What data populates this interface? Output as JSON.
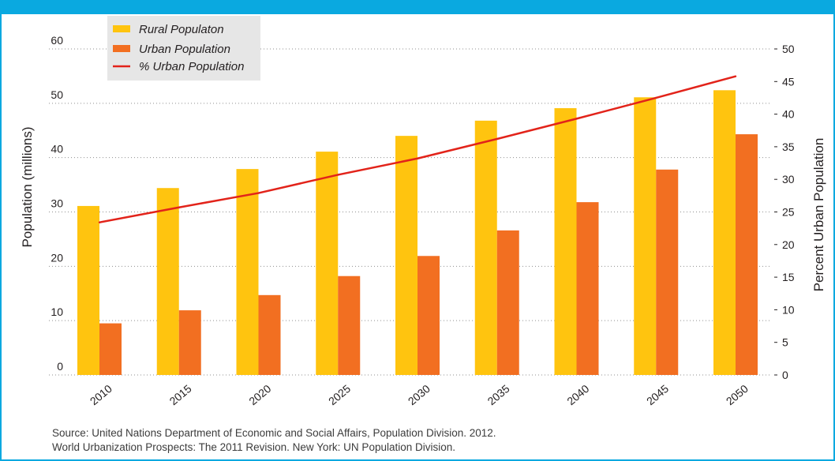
{
  "chart_data": {
    "type": "bar",
    "categories": [
      "2010",
      "2015",
      "2020",
      "2025",
      "2030",
      "2035",
      "2040",
      "2045",
      "2050"
    ],
    "series": [
      {
        "name": "Rural Populaton",
        "type": "bar",
        "axis": "left",
        "color": "#ffc40f",
        "values": [
          31.1,
          34.4,
          37.9,
          41.1,
          44.0,
          46.8,
          49.1,
          51.1,
          52.4
        ]
      },
      {
        "name": "Urban Population",
        "type": "bar",
        "axis": "left",
        "color": "#f26f21",
        "values": [
          9.5,
          11.9,
          14.7,
          18.2,
          21.9,
          26.6,
          31.8,
          37.8,
          44.3
        ]
      },
      {
        "name": "% Urban Population",
        "type": "line",
        "axis": "right",
        "color": "#e2231a",
        "values": [
          23.4,
          25.7,
          27.9,
          30.7,
          33.2,
          36.2,
          39.3,
          42.5,
          45.8
        ]
      }
    ],
    "ylabel": "Population (millions)",
    "y2label": "Percent Urban Population",
    "ylim": [
      0,
      60
    ],
    "y2lim": [
      0,
      50
    ],
    "yticks": [
      0,
      10,
      20,
      30,
      40,
      50,
      60
    ],
    "y2ticks": [
      0,
      5,
      10,
      15,
      20,
      25,
      30,
      35,
      40,
      45,
      50
    ],
    "grid": true,
    "legend": "top-left"
  },
  "source": {
    "line1": "Source: United Nations Department of Economic and Social Affairs, Population Division. 2012.",
    "line2": "World Urbanization Prospects: The 2011 Revision. New York: UN Population Division."
  },
  "colors": {
    "frame": "#0aa9e0",
    "legend_bg": "#e6e6e6",
    "text": "#231f20"
  }
}
